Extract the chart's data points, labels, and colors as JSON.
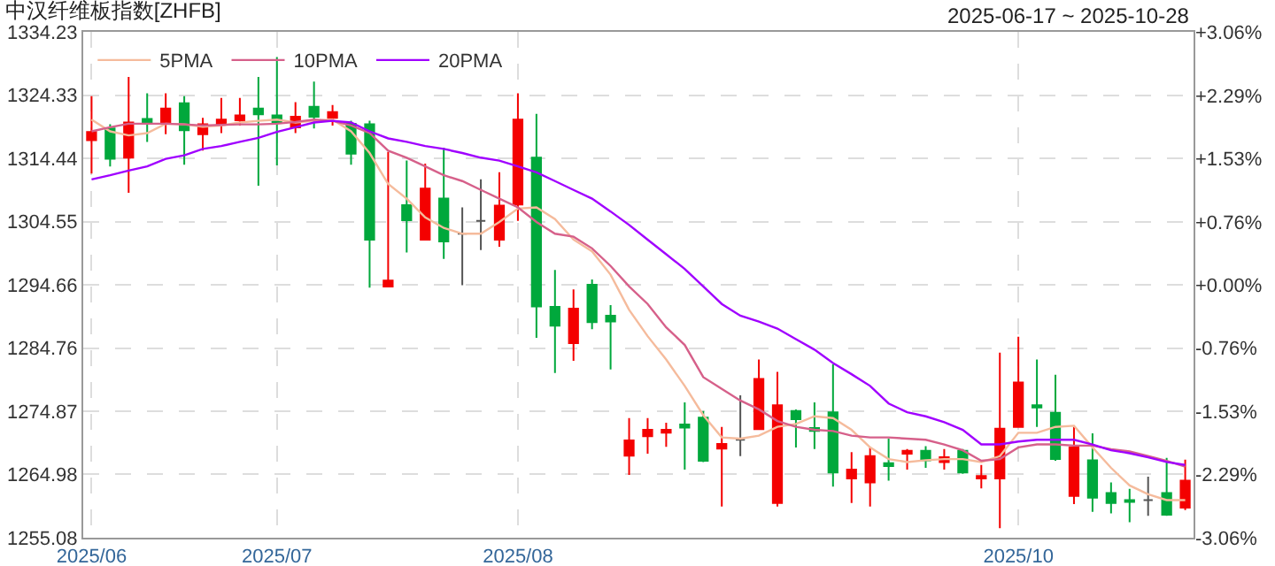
{
  "chart_data": {
    "type": "candlestick",
    "title": "中汉纤维板指数[ZHFB]",
    "subtitle": "2025-06-17 ~ 2025-10-28",
    "categories": [
      "2025/06",
      null,
      null,
      null,
      null,
      null,
      null,
      null,
      null,
      null,
      "2025/07",
      null,
      null,
      null,
      null,
      null,
      null,
      null,
      null,
      null,
      null,
      null,
      null,
      "2025/08",
      null,
      null,
      null,
      null,
      null,
      null,
      null,
      null,
      null,
      null,
      null,
      null,
      null,
      null,
      null,
      null,
      null,
      null,
      null,
      null,
      null,
      null,
      null,
      null,
      null,
      null,
      "2025/10",
      null,
      null,
      null,
      null,
      null,
      null,
      null,
      null,
      null
    ],
    "ohlc": [
      [
        1317.29,
        1324.16,
        1312.07,
        1318.57
      ],
      [
        1319.12,
        1319.76,
        1313.17,
        1314.36
      ],
      [
        1314.54,
        1327.18,
        1309.05,
        1320.04
      ],
      [
        1320.59,
        1324.61,
        1317.01,
        1319.85
      ],
      [
        1319.85,
        1324.61,
        1318.2,
        1322.23
      ],
      [
        1323.06,
        1324.16,
        1313.44,
        1318.85
      ],
      [
        1318.2,
        1320.77,
        1315.64,
        1319.76
      ],
      [
        1319.76,
        1323.88,
        1318.39,
        1320.49
      ],
      [
        1320.4,
        1323.88,
        1319.58,
        1321.14
      ],
      [
        1322.23,
        1327.18,
        1310.15,
        1321.32
      ],
      [
        1321.14,
        1330.29,
        1313.35,
        1320.04
      ],
      [
        1319.3,
        1323.24,
        1318.39,
        1320.95
      ],
      [
        1322.51,
        1326.45,
        1319.12,
        1320.95
      ],
      [
        1320.77,
        1322.78,
        1319.58,
        1321.68
      ],
      [
        1319.85,
        1320.31,
        1313.44,
        1315.18
      ],
      [
        1319.76,
        1320.31,
        1294.21,
        1301.72
      ],
      [
        1294.39,
        1315.46,
        1294.39,
        1295.31
      ],
      [
        1307.12,
        1314.08,
        1299.71,
        1304.74
      ],
      [
        1301.72,
        1313.63,
        1301.72,
        1309.69
      ],
      [
        1308.13,
        1316.1,
        1298.7,
        1301.45
      ],
      [
        1302.64,
        1306.76,
        1294.58,
        1302.64
      ],
      [
        1304.65,
        1311.15,
        1300.07,
        1304.65
      ],
      [
        1301.72,
        1312.25,
        1300.62,
        1307.03
      ],
      [
        1307.22,
        1324.61,
        1304.65,
        1320.49
      ],
      [
        1314.54,
        1321.41,
        1286.34,
        1291.28
      ],
      [
        1291.19,
        1296.96,
        1280.84,
        1288.26
      ],
      [
        1285.51,
        1293.94,
        1282.77,
        1290.92
      ],
      [
        1294.67,
        1295.49,
        1287.71,
        1288.81
      ],
      [
        1289.82,
        1291.47,
        1281.39,
        1288.9
      ],
      [
        1267.93,
        1273.79,
        1264.91,
        1270.31
      ],
      [
        1270.95,
        1273.79,
        1268.21,
        1271.96
      ],
      [
        1271.5,
        1273.06,
        1269.3,
        1271.96
      ],
      [
        1272.78,
        1276.26,
        1265.73,
        1272.32
      ],
      [
        1273.88,
        1274.89,
        1266.92,
        1267.11
      ],
      [
        1269.03,
        1272.42,
        1259.96,
        1269.76
      ],
      [
        1270.4,
        1277.36,
        1267.84,
        1270.4
      ],
      [
        1272.05,
        1282.95,
        1272.05,
        1279.93
      ],
      [
        1260.51,
        1281.02,
        1259.96,
        1275.81
      ],
      [
        1274.89,
        1275.16,
        1269.21,
        1273.61
      ],
      [
        1272.23,
        1276.26,
        1268.94,
        1271.78
      ],
      [
        1274.71,
        1282.21,
        1263.08,
        1265.27
      ],
      [
        1264.36,
        1268.48,
        1260.51,
        1265.73
      ],
      [
        1263.72,
        1269.21,
        1259.96,
        1267.84
      ],
      [
        1266.74,
        1270.58,
        1264.0,
        1266.28
      ],
      [
        1268.21,
        1268.94,
        1265.73,
        1268.66
      ],
      [
        1268.66,
        1269.39,
        1266.01,
        1267.2
      ],
      [
        1266.92,
        1268.94,
        1265.73,
        1267.66
      ],
      [
        1268.66,
        1268.94,
        1265.09,
        1265.27
      ],
      [
        1264.36,
        1266.47,
        1262.8,
        1264.73
      ],
      [
        1264.36,
        1284.05,
        1256.58,
        1272.14
      ],
      [
        1272.42,
        1286.52,
        1272.42,
        1279.38
      ],
      [
        1275.81,
        1282.95,
        1272.42,
        1275.44
      ],
      [
        1274.62,
        1280.57,
        1267.11,
        1267.38
      ],
      [
        1261.61,
        1272.42,
        1260.33,
        1269.21
      ],
      [
        1267.2,
        1271.41,
        1259.14,
        1261.34
      ],
      [
        1262.07,
        1263.72,
        1258.87,
        1260.51
      ],
      [
        1260.97,
        1262.71,
        1257.49,
        1260.7
      ],
      [
        1260.97,
        1264.63,
        1258.5,
        1260.97
      ],
      [
        1262.07,
        1267.56,
        1258.5,
        1258.68
      ],
      [
        1259.78,
        1267.29,
        1259.41,
        1263.99
      ]
    ],
    "colors": [
      "#f40000",
      "#00a83c",
      "#f40000",
      "#00a83c",
      "#f40000",
      "#00a83c",
      "#f40000",
      "#f40000",
      "#f40000",
      "#00a83c",
      "#00a83c",
      "#f40000",
      "#00a83c",
      "#f40000",
      "#00a83c",
      "#00a83c",
      "#f40000",
      "#00a83c",
      "#f40000",
      "#00a83c",
      "#555555",
      "#555555",
      "#f40000",
      "#f40000",
      "#00a83c",
      "#00a83c",
      "#f40000",
      "#00a83c",
      "#00a83c",
      "#f40000",
      "#f40000",
      "#f40000",
      "#00a83c",
      "#00a83c",
      "#f40000",
      "#555555",
      "#f40000",
      "#f40000",
      "#00a83c",
      "#00a83c",
      "#00a83c",
      "#f40000",
      "#f40000",
      "#00a83c",
      "#f40000",
      "#00a83c",
      "#f40000",
      "#00a83c",
      "#f40000",
      "#f40000",
      "#f40000",
      "#00a83c",
      "#00a83c",
      "#f40000",
      "#00a83c",
      "#00a83c",
      "#00a83c",
      "#555555",
      "#00a83c",
      "#f40000"
    ],
    "series": [
      {
        "name": "5PMA",
        "type": "line",
        "color": "#f5bb9c",
        "values": [
          1320.49,
          1318.66,
          1318.02,
          1318.39,
          1319.85,
          1319.76,
          1319.39,
          1319.58,
          1320.04,
          1320.31,
          1320.49,
          1320.04,
          1320.31,
          1320.49,
          1318.66,
          1315.27,
          1310.42,
          1308.13,
          1305.2,
          1303.55,
          1302.64,
          1302.64,
          1304.47,
          1306.57,
          1306.76,
          1304.93,
          1301.72,
          1299.89,
          1296.23,
          1290.73,
          1286.61,
          1282.95,
          1278.83,
          1274.25,
          1270.77,
          1270.58,
          1271.04,
          1272.42,
          1272.88,
          1274.07,
          1273.79,
          1271.96,
          1269.21,
          1267.38,
          1266.92,
          1267.2,
          1267.38,
          1267.38,
          1266.92,
          1267.84,
          1271.5,
          1271.5,
          1272.42,
          1272.6,
          1269.21,
          1266.01,
          1263.26,
          1261.89,
          1260.97,
          1260.97
        ]
      },
      {
        "name": "10PMA",
        "type": "line",
        "color": "#d6608a",
        "values": [
          1318.66,
          1319.3,
          1319.85,
          1319.85,
          1319.85,
          1319.76,
          1319.58,
          1319.67,
          1319.76,
          1319.76,
          1319.85,
          1320.13,
          1320.49,
          1320.31,
          1319.58,
          1318.39,
          1315.64,
          1314.54,
          1313.17,
          1311.79,
          1310.88,
          1309.5,
          1308.13,
          1306.76,
          1304.47,
          1302.64,
          1302.18,
          1300.35,
          1297.6,
          1294.39,
          1291.65,
          1287.99,
          1285.24,
          1280.2,
          1278.37,
          1276.54,
          1275.16,
          1273.33,
          1272.42,
          1271.96,
          1271.78,
          1271.04,
          1270.77,
          1270.77,
          1270.58,
          1270.4,
          1269.67,
          1268.75,
          1267.11,
          1267.38,
          1269.21,
          1269.67,
          1269.67,
          1269.49,
          1269.49,
          1268.94,
          1268.57,
          1267.84,
          1267.11,
          1266.19
        ]
      },
      {
        "name": "20PMA",
        "type": "line",
        "color": "#a000ff",
        "values": [
          1311.15,
          1311.79,
          1312.53,
          1313.17,
          1314.36,
          1314.91,
          1315.91,
          1316.37,
          1317.01,
          1317.65,
          1318.57,
          1319.3,
          1320.04,
          1320.31,
          1320.04,
          1318.66,
          1317.56,
          1317.01,
          1316.37,
          1315.91,
          1315.27,
          1314.54,
          1314.08,
          1313.17,
          1312.25,
          1310.88,
          1309.5,
          1308.13,
          1306.12,
          1304.01,
          1301.72,
          1299.43,
          1297.14,
          1294.39,
          1291.65,
          1289.82,
          1288.9,
          1287.8,
          1286.15,
          1284.5,
          1282.4,
          1280.66,
          1278.83,
          1276.08,
          1274.71,
          1274.07,
          1273.15,
          1271.96,
          1269.67,
          1269.67,
          1270.13,
          1270.4,
          1270.4,
          1270.4,
          1269.67,
          1268.75,
          1268.3,
          1267.65,
          1266.92,
          1266.46
        ]
      }
    ],
    "ylim": [
      1255.08,
      1334.23
    ],
    "yticks": [
      1255.08,
      1264.98,
      1274.87,
      1284.76,
      1294.66,
      1304.55,
      1314.44,
      1324.33,
      1334.23
    ],
    "y2lim": [
      -3.06,
      3.06
    ],
    "y2ticks": [
      {
        "value": -3.06,
        "label": "-3.06%"
      },
      {
        "value": -2.29,
        "label": "-2.29%"
      },
      {
        "value": -1.53,
        "label": "-1.53%"
      },
      {
        "value": -0.76,
        "label": "-0.76%"
      },
      {
        "value": 0,
        "label": "+0.00%"
      },
      {
        "value": 0.76,
        "label": "+0.76%"
      },
      {
        "value": 1.53,
        "label": "+1.53%"
      },
      {
        "value": 2.29,
        "label": "+2.29%"
      },
      {
        "value": 3.06,
        "label": "+3.06%"
      }
    ],
    "grid": true,
    "legend": "top left"
  }
}
